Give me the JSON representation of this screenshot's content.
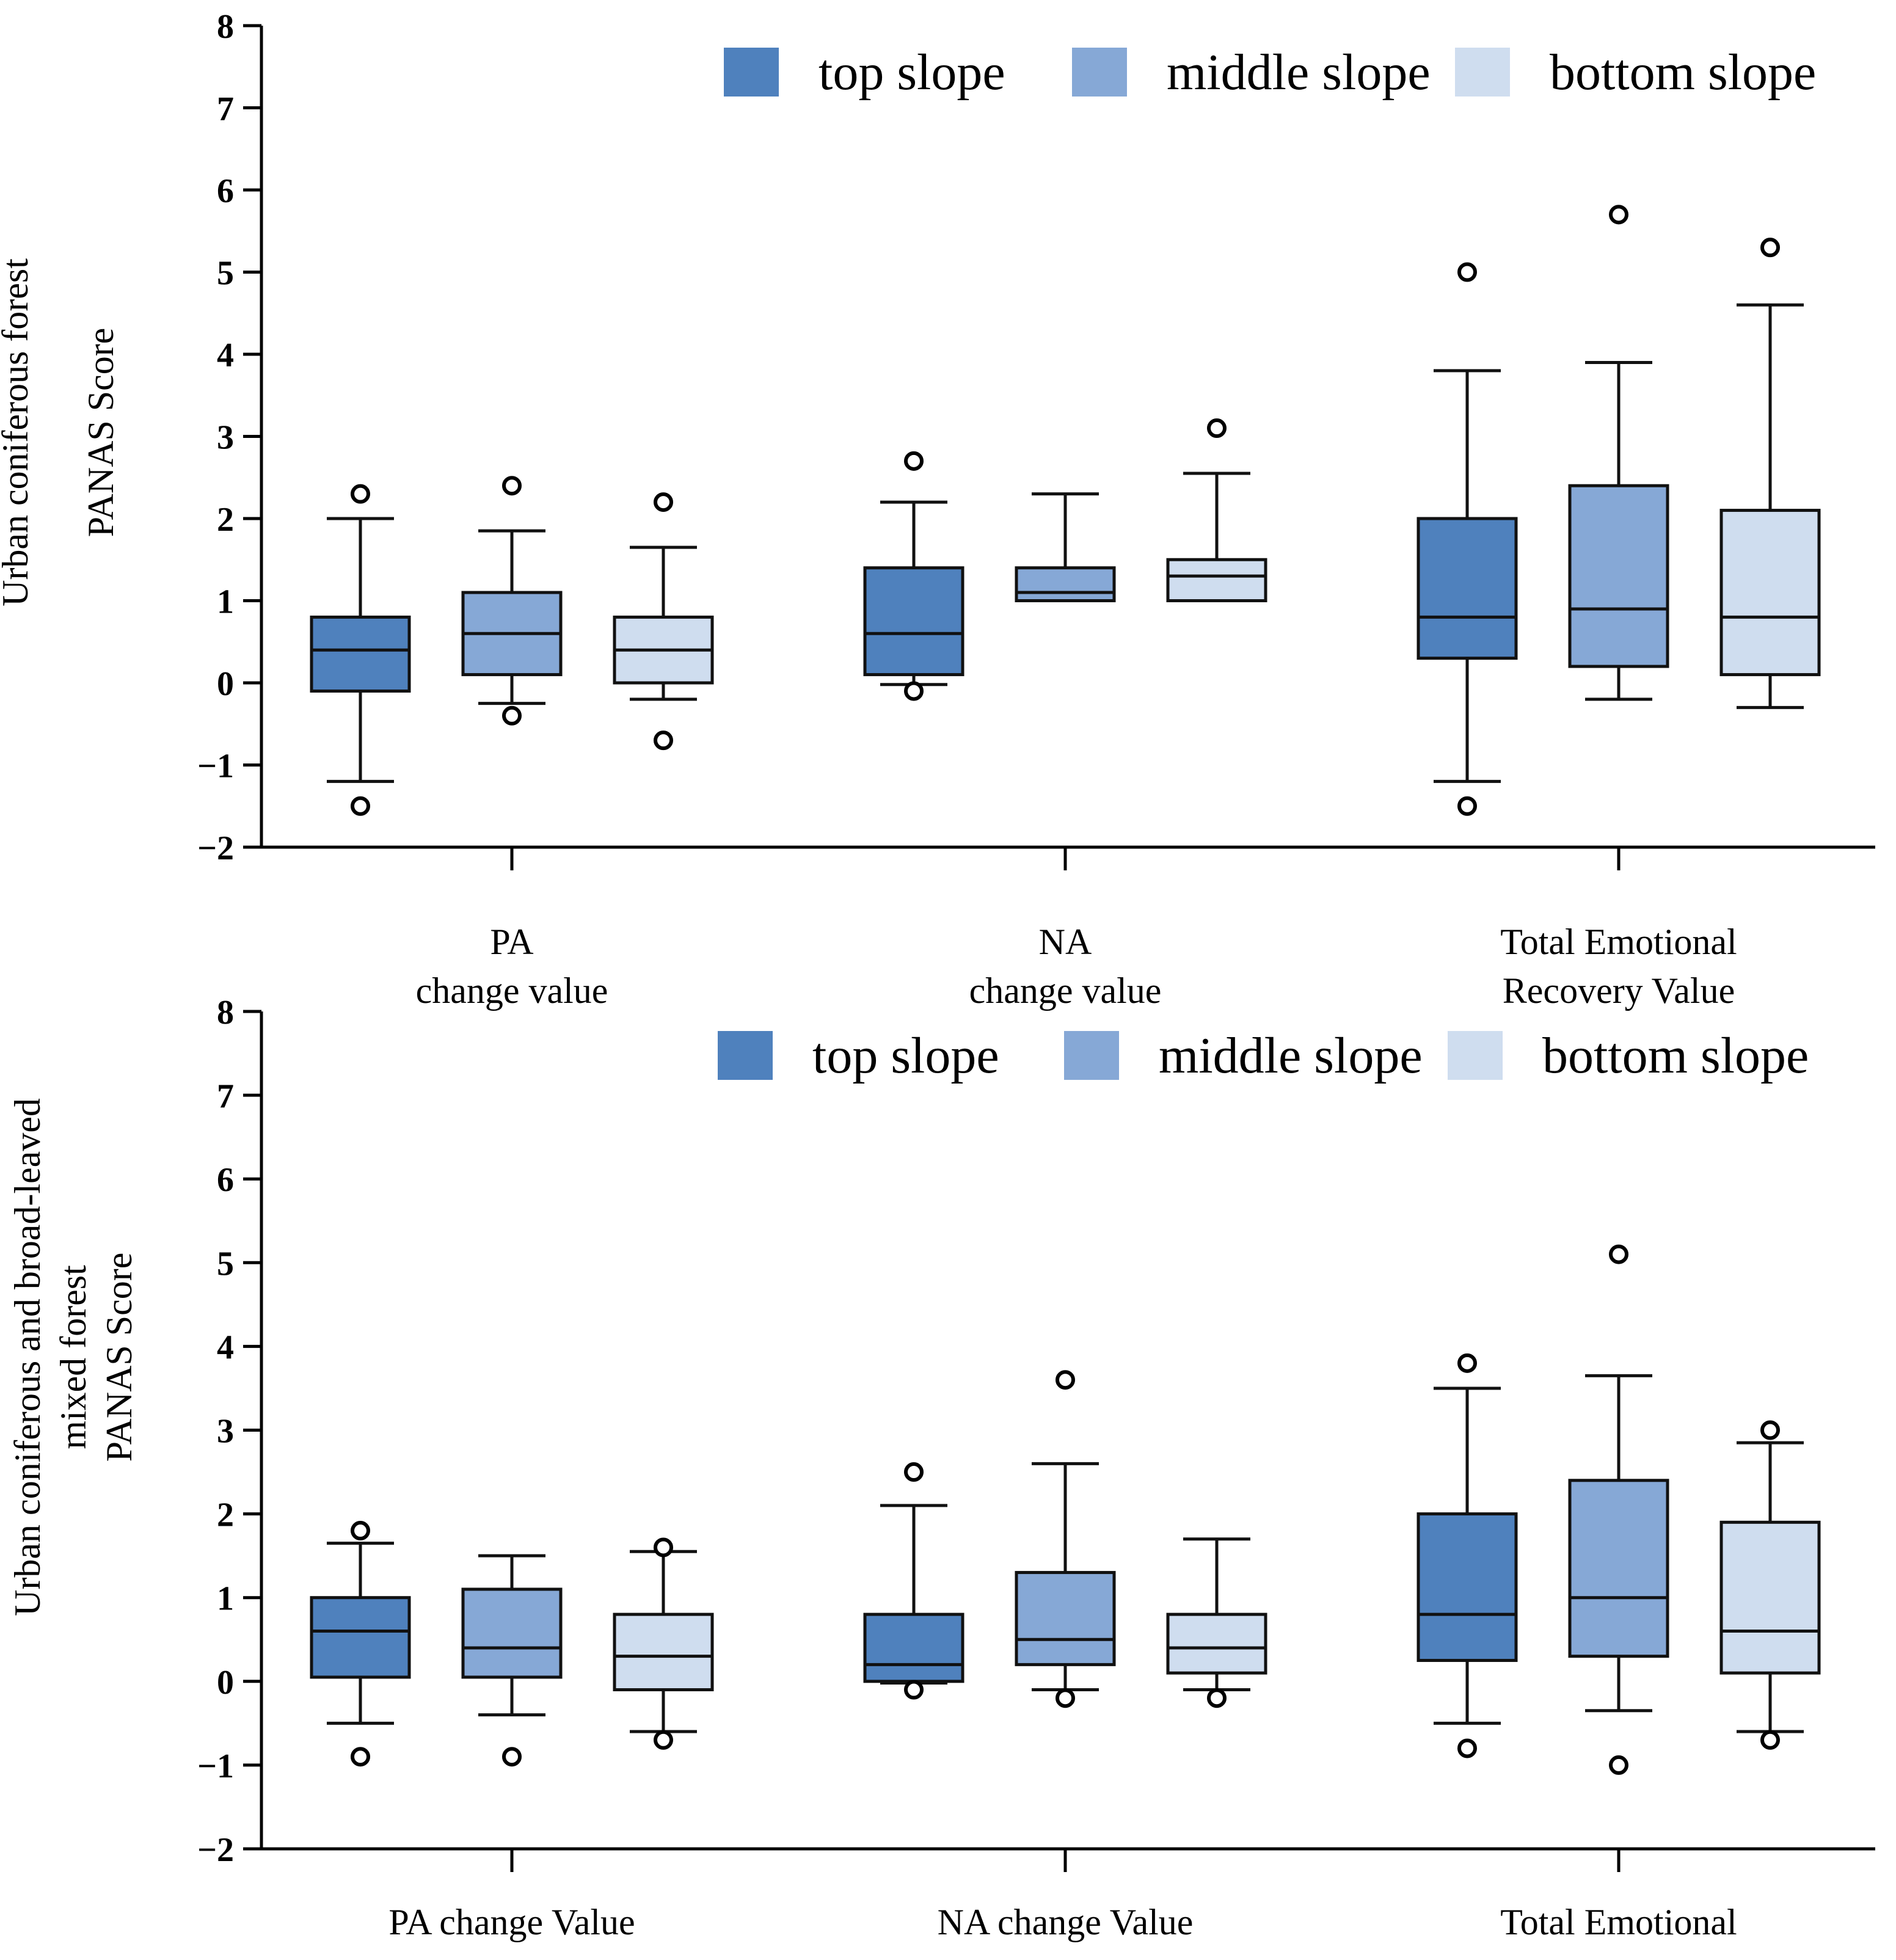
{
  "chart_data": [
    {
      "type": "boxplot",
      "ylabel": [
        "Urban coniferous forest",
        "PANAS Score"
      ],
      "ylim": [
        -2,
        8
      ],
      "yticks": [
        -2,
        -1,
        0,
        1,
        2,
        3,
        4,
        5,
        6,
        7,
        8
      ],
      "legend_position": "top-right",
      "categories": [
        {
          "label": [
            "PA",
            "change value"
          ]
        },
        {
          "label": [
            "NA",
            "change value"
          ]
        },
        {
          "label": [
            "Total Emotional",
            "Recovery Value"
          ]
        }
      ],
      "series": [
        {
          "name": "top slope",
          "color": "#4F81BD",
          "boxes": [
            {
              "whisker_low": -1.2,
              "q1": -0.1,
              "median": 0.4,
              "q3": 0.8,
              "whisker_high": 2.0,
              "outliers": [
                -1.5,
                2.3
              ]
            },
            {
              "whisker_low": -0.02,
              "q1": 0.1,
              "median": 0.6,
              "q3": 1.4,
              "whisker_high": 2.2,
              "outliers": [
                -0.1,
                2.7
              ]
            },
            {
              "whisker_low": -1.2,
              "q1": 0.3,
              "median": 0.8,
              "q3": 2.0,
              "whisker_high": 3.8,
              "outliers": [
                -1.5,
                5.0
              ]
            }
          ]
        },
        {
          "name": "middle slope",
          "color": "#86A8D6",
          "boxes": [
            {
              "whisker_low": -0.25,
              "q1": 0.1,
              "median": 0.6,
              "q3": 1.1,
              "whisker_high": 1.85,
              "outliers": [
                -0.4,
                2.4
              ]
            },
            {
              "whisker_low": 1.0,
              "q1": 1.0,
              "median": 1.1,
              "q3": 1.4,
              "whisker_high": 2.3,
              "outliers": []
            },
            {
              "whisker_low": -0.2,
              "q1": 0.2,
              "median": 0.9,
              "q3": 2.4,
              "whisker_high": 3.9,
              "outliers": [
                5.7
              ]
            }
          ]
        },
        {
          "name": "bottom slope",
          "color": "#CFDDEF",
          "boxes": [
            {
              "whisker_low": -0.2,
              "q1": 0.0,
              "median": 0.4,
              "q3": 0.8,
              "whisker_high": 1.65,
              "outliers": [
                -0.7,
                2.2
              ]
            },
            {
              "whisker_low": 1.0,
              "q1": 1.0,
              "median": 1.3,
              "q3": 1.5,
              "whisker_high": 2.55,
              "outliers": [
                3.1
              ]
            },
            {
              "whisker_low": -0.3,
              "q1": 0.1,
              "median": 0.8,
              "q3": 2.1,
              "whisker_high": 4.6,
              "outliers": [
                5.3
              ]
            }
          ]
        }
      ]
    },
    {
      "type": "boxplot",
      "ylabel": [
        "Urban coniferous and broad-leaved",
        "mixed forest",
        "PANAS Score"
      ],
      "ylim": [
        -2,
        8
      ],
      "yticks": [
        -2,
        -1,
        0,
        1,
        2,
        3,
        4,
        5,
        6,
        7,
        8
      ],
      "legend_position": "top-right",
      "categories": [
        {
          "label": [
            "PA change Value"
          ]
        },
        {
          "label": [
            "NA change Value"
          ]
        },
        {
          "label": [
            "Total Emotional"
          ]
        }
      ],
      "series": [
        {
          "name": "top slope",
          "color": "#4F81BD",
          "boxes": [
            {
              "whisker_low": -0.5,
              "q1": 0.05,
              "median": 0.6,
              "q3": 1.0,
              "whisker_high": 1.65,
              "outliers": [
                -0.9,
                1.8
              ]
            },
            {
              "whisker_low": -0.02,
              "q1": 0.0,
              "median": 0.2,
              "q3": 0.8,
              "whisker_high": 2.1,
              "outliers": [
                -0.1,
                2.5
              ]
            },
            {
              "whisker_low": -0.5,
              "q1": 0.25,
              "median": 0.8,
              "q3": 2.0,
              "whisker_high": 3.5,
              "outliers": [
                -0.8,
                3.8
              ]
            }
          ]
        },
        {
          "name": "middle slope",
          "color": "#86A8D6",
          "boxes": [
            {
              "whisker_low": -0.4,
              "q1": 0.05,
              "median": 0.4,
              "q3": 1.1,
              "whisker_high": 1.5,
              "outliers": [
                -0.9
              ]
            },
            {
              "whisker_low": -0.1,
              "q1": 0.2,
              "median": 0.5,
              "q3": 1.3,
              "whisker_high": 2.6,
              "outliers": [
                -0.2,
                3.6
              ]
            },
            {
              "whisker_low": -0.35,
              "q1": 0.3,
              "median": 1.0,
              "q3": 2.4,
              "whisker_high": 3.65,
              "outliers": [
                -1.0,
                5.1
              ]
            }
          ]
        },
        {
          "name": "bottom slope",
          "color": "#CFDDEF",
          "boxes": [
            {
              "whisker_low": -0.6,
              "q1": -0.1,
              "median": 0.3,
              "q3": 0.8,
              "whisker_high": 1.55,
              "outliers": [
                -0.7,
                1.6
              ]
            },
            {
              "whisker_low": -0.1,
              "q1": 0.1,
              "median": 0.4,
              "q3": 0.8,
              "whisker_high": 1.7,
              "outliers": [
                -0.2
              ]
            },
            {
              "whisker_low": -0.6,
              "q1": 0.1,
              "median": 0.6,
              "q3": 1.9,
              "whisker_high": 2.85,
              "outliers": [
                -0.7,
                3.0
              ]
            }
          ]
        }
      ]
    }
  ]
}
